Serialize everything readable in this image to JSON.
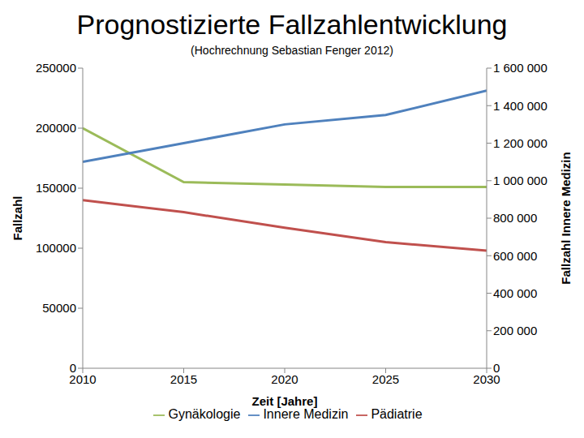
{
  "chart_data": {
    "type": "line",
    "title": "Prognostizierte Fallzahlentwicklung",
    "subtitle": "(Hochrechnung Sebastian Fenger 2012)",
    "x_label": "Zeit [Jahre]",
    "y_label": "Fallzahl",
    "y2_label": "Fallzahl Innere Medizin",
    "x": [
      2010,
      2015,
      2020,
      2025,
      2030
    ],
    "xlim": [
      2010,
      2030
    ],
    "xticks": [
      2010,
      2015,
      2020,
      2025,
      2030
    ],
    "ylim": [
      0,
      250000
    ],
    "yticks": [
      0,
      50000,
      100000,
      150000,
      200000,
      250000
    ],
    "y2lim": [
      0,
      1600000
    ],
    "y2ticks": [
      0,
      {
        "value": 200000,
        "label": "200 000"
      },
      {
        "value": 400000,
        "label": "400 000"
      },
      {
        "value": 600000,
        "label": "600 000"
      },
      {
        "value": 800000,
        "label": "800 000"
      },
      {
        "value": 1000000,
        "label": "1 000 000"
      },
      {
        "value": 1200000,
        "label": "1 200 000"
      },
      {
        "value": 1400000,
        "label": "1 400 000"
      },
      {
        "value": 1600000,
        "label": "1 600 000"
      }
    ],
    "grid": false,
    "legend": "bottom",
    "series": [
      {
        "name": "Pädiatrie",
        "color": "#c0504d",
        "values": [
          140000,
          130000,
          117000,
          105000,
          98000
        ]
      },
      {
        "name": "Gynäkologie",
        "color": "#9bbb59",
        "values": [
          200000,
          155000,
          153000,
          151000,
          151000
        ]
      },
      {
        "name": "Innere Medizin",
        "color": "#4f81bd",
        "values": [
          1100000,
          1200000,
          1300000,
          1350000,
          1480000
        ],
        "axis": "y2"
      }
    ]
  }
}
